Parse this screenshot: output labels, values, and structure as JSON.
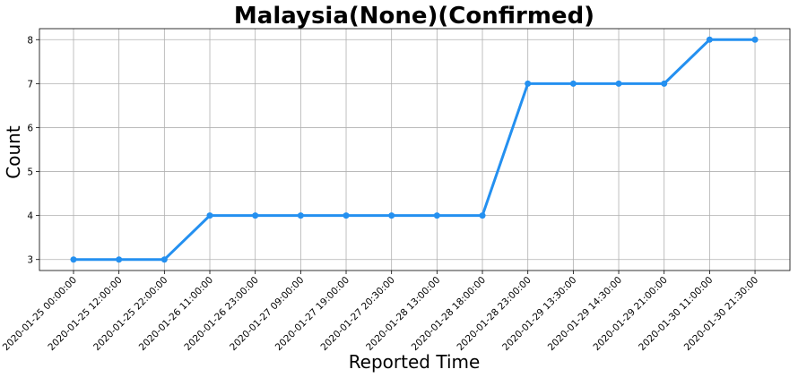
{
  "chart_data": {
    "type": "line",
    "title": "Malaysia(None)(Confirmed)",
    "xlabel": "Reported Time",
    "ylabel": "Count",
    "categories": [
      "2020-01-25 00:00:00",
      "2020-01-25 12:00:00",
      "2020-01-25 22:00:00",
      "2020-01-26 11:00:00",
      "2020-01-26 23:00:00",
      "2020-01-27 09:00:00",
      "2020-01-27 19:00:00",
      "2020-01-27 20:30:00",
      "2020-01-28 13:00:00",
      "2020-01-28 18:00:00",
      "2020-01-28 23:00:00",
      "2020-01-29 13:30:00",
      "2020-01-29 14:30:00",
      "2020-01-29 21:00:00",
      "2020-01-30 11:00:00",
      "2020-01-30 21:30:00"
    ],
    "values": [
      3,
      3,
      3,
      4,
      4,
      4,
      4,
      4,
      4,
      4,
      7,
      7,
      7,
      7,
      8,
      8
    ],
    "ylim": [
      2.75,
      8.25
    ],
    "yticks": [
      3,
      4,
      5,
      6,
      7,
      8
    ],
    "grid": true,
    "line_color": "#2490f0"
  }
}
